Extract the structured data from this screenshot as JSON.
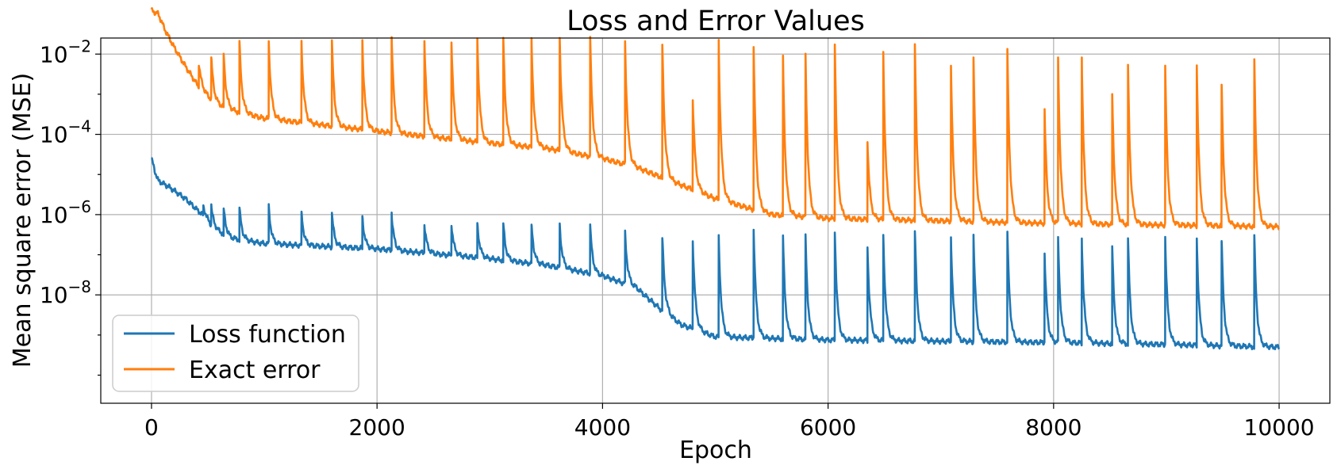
{
  "chart_data": {
    "type": "line",
    "title": "Loss and Error Values",
    "xlabel": "Epoch",
    "ylabel": "Mean square error (MSE)",
    "xlim": [
      -450,
      10450
    ],
    "ylim_log10": [
      -10.7,
      -1.6
    ],
    "y_scale": "log",
    "grid": true,
    "legend_position": "lower-left",
    "x_ticks": [
      {
        "value": 0,
        "label": "0"
      },
      {
        "value": 2000,
        "label": "2000"
      },
      {
        "value": 4000,
        "label": "4000"
      },
      {
        "value": 6000,
        "label": "6000"
      },
      {
        "value": 8000,
        "label": "8000"
      },
      {
        "value": 10000,
        "label": "10000"
      }
    ],
    "y_ticks": [
      {
        "exp": -2,
        "base": "10",
        "sup": "−2"
      },
      {
        "exp": -4,
        "base": "10",
        "sup": "−4"
      },
      {
        "exp": -6,
        "base": "10",
        "sup": "−6"
      },
      {
        "exp": -8,
        "base": "10",
        "sup": "−8"
      }
    ],
    "series": [
      {
        "name": "Loss function",
        "color": "#1f77b4",
        "baseline": [
          [
            0,
            2.5e-05
          ],
          [
            30,
            1.2e-05
          ],
          [
            60,
            7e-06
          ],
          [
            150,
            5e-06
          ],
          [
            300,
            2.5e-06
          ],
          [
            450,
            1e-06
          ],
          [
            550,
            4.5e-07
          ],
          [
            700,
            2.6e-07
          ],
          [
            1000,
            1.9e-07
          ],
          [
            2000,
            1.4e-07
          ],
          [
            3000,
            8e-08
          ],
          [
            3500,
            5.5e-08
          ],
          [
            4000,
            3e-08
          ],
          [
            4300,
            1.5e-08
          ],
          [
            4530,
            4e-09
          ],
          [
            4700,
            1.8e-09
          ],
          [
            5000,
            9e-10
          ],
          [
            6000,
            7.5e-10
          ],
          [
            7000,
            7e-10
          ],
          [
            8000,
            6.5e-10
          ],
          [
            9000,
            5.8e-10
          ],
          [
            10000,
            5e-10
          ]
        ],
        "spikes": [
          [
            460,
            1.6e-06
          ],
          [
            530,
            1.6e-06
          ],
          [
            640,
            1.4e-06
          ],
          [
            780,
            1.5e-06
          ],
          [
            1040,
            1.6e-06
          ],
          [
            1330,
            1.2e-06
          ],
          [
            1600,
            1.1e-06
          ],
          [
            1870,
            9e-07
          ],
          [
            2130,
            1e-06
          ],
          [
            2420,
            6e-07
          ],
          [
            2660,
            6e-07
          ],
          [
            2890,
            6e-07
          ],
          [
            3120,
            6e-07
          ],
          [
            3370,
            6e-07
          ],
          [
            3620,
            5.5e-07
          ],
          [
            3890,
            5.5e-07
          ],
          [
            4200,
            3.5e-07
          ],
          [
            4530,
            3e-07
          ],
          [
            4800,
            2.5e-07
          ],
          [
            5030,
            3e-07
          ],
          [
            5340,
            4.5e-07
          ],
          [
            5600,
            3e-07
          ],
          [
            5800,
            3e-07
          ],
          [
            6060,
            4e-07
          ],
          [
            6350,
            1.5e-07
          ],
          [
            6490,
            3e-07
          ],
          [
            6770,
            4.5e-07
          ],
          [
            7090,
            2.5e-07
          ],
          [
            7290,
            2.8e-07
          ],
          [
            7590,
            4e-07
          ],
          [
            7920,
            1.1e-07
          ],
          [
            8040,
            2.5e-07
          ],
          [
            8250,
            2.5e-07
          ],
          [
            8520,
            1.6e-07
          ],
          [
            8660,
            2.5e-07
          ],
          [
            8990,
            2.5e-07
          ],
          [
            9270,
            2.5e-07
          ],
          [
            9490,
            2.5e-07
          ],
          [
            9780,
            3e-07
          ]
        ]
      },
      {
        "name": "Exact error",
        "color": "#ff7f0e",
        "baseline": [
          [
            0,
            0.12
          ],
          [
            60,
            0.1
          ],
          [
            120,
            0.04
          ],
          [
            200,
            0.015
          ],
          [
            300,
            0.005
          ],
          [
            420,
            0.0015
          ],
          [
            560,
            0.0006
          ],
          [
            700,
            0.0004
          ],
          [
            1000,
            0.00025
          ],
          [
            2000,
            0.00012
          ],
          [
            3000,
            6e-05
          ],
          [
            3500,
            4.5e-05
          ],
          [
            4000,
            2.5e-05
          ],
          [
            4300,
            1.5e-05
          ],
          [
            4600,
            7e-06
          ],
          [
            5000,
            2.5e-06
          ],
          [
            5500,
            1e-06
          ],
          [
            6000,
            8e-07
          ],
          [
            7000,
            7e-07
          ],
          [
            8000,
            6e-07
          ],
          [
            9000,
            5.5e-07
          ],
          [
            10000,
            5e-07
          ]
        ],
        "spikes": [
          [
            420,
            0.006
          ],
          [
            530,
            0.008
          ],
          [
            640,
            0.01
          ],
          [
            780,
            0.02
          ],
          [
            1040,
            0.02
          ],
          [
            1330,
            0.02
          ],
          [
            1600,
            0.02
          ],
          [
            1870,
            0.02
          ],
          [
            2130,
            0.025
          ],
          [
            2420,
            0.022
          ],
          [
            2660,
            0.022
          ],
          [
            2890,
            0.022
          ],
          [
            3120,
            0.025
          ],
          [
            3370,
            0.025
          ],
          [
            3620,
            0.025
          ],
          [
            3890,
            0.028
          ],
          [
            4200,
            0.02
          ],
          [
            4530,
            0.02
          ],
          [
            4800,
            0.0008
          ],
          [
            5030,
            0.02
          ],
          [
            5340,
            0.015
          ],
          [
            5600,
            0.009
          ],
          [
            5800,
            0.01
          ],
          [
            6060,
            0.02
          ],
          [
            6350,
            6e-05
          ],
          [
            6490,
            0.01
          ],
          [
            6770,
            0.02
          ],
          [
            7090,
            0.005
          ],
          [
            7290,
            0.008
          ],
          [
            7590,
            0.015
          ],
          [
            7920,
            0.0004
          ],
          [
            8040,
            0.008
          ],
          [
            8250,
            0.008
          ],
          [
            8520,
            0.001
          ],
          [
            8660,
            0.005
          ],
          [
            8990,
            0.005
          ],
          [
            9270,
            0.005
          ],
          [
            9490,
            0.002
          ],
          [
            9780,
            0.007
          ]
        ]
      }
    ]
  }
}
